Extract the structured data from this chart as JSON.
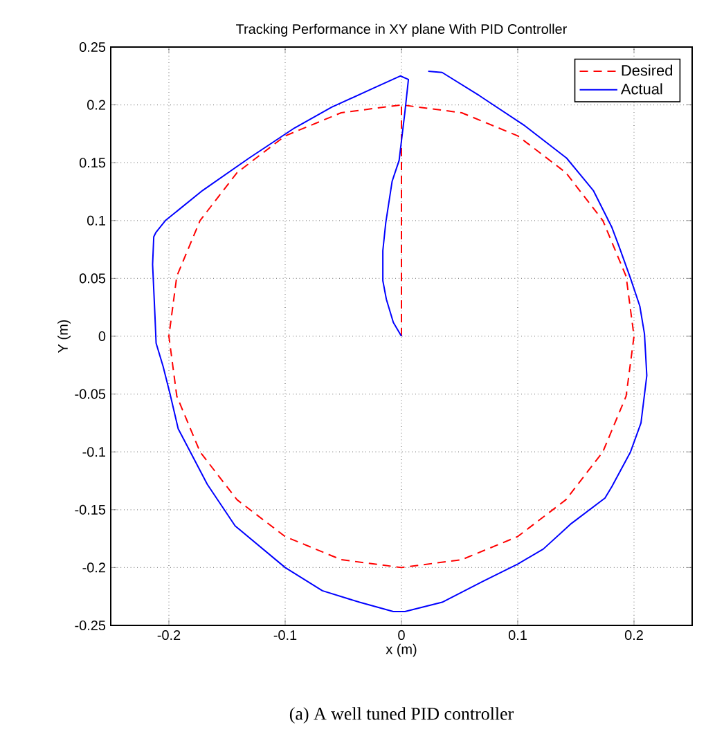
{
  "chart_data": {
    "type": "line",
    "title": "Tracking Performance in XY plane With PID Controller",
    "xlabel": "x (m)",
    "ylabel": "Y (m)",
    "annotations": [
      "(a) A well tuned PID controller"
    ],
    "xlim": [
      -0.25,
      0.25
    ],
    "ylim": [
      -0.25,
      0.25
    ],
    "xticks": [
      -0.2,
      -0.1,
      0,
      0.1,
      0.2
    ],
    "yticks": [
      -0.25,
      -0.2,
      -0.15,
      -0.1,
      -0.05,
      0,
      0.05,
      0.1,
      0.15,
      0.2,
      0.25
    ],
    "grid": true,
    "legend": "top right",
    "series": [
      {
        "name": "Desired",
        "color": "#ff0000",
        "line_style": "dashed",
        "x": [
          0,
          0,
          0.0518,
          0.1,
          0.1414,
          0.1732,
          0.1932,
          0.2,
          0.1932,
          0.1732,
          0.1414,
          0.1,
          0.0518,
          0,
          -0.0518,
          -0.1,
          -0.1414,
          -0.1732,
          -0.1932,
          -0.2,
          -0.1932,
          -0.1732,
          -0.1414,
          -0.1,
          -0.0518,
          0
        ],
        "values": [
          0,
          0.2,
          0.1932,
          0.1732,
          0.1414,
          0.1,
          0.0518,
          0,
          -0.0518,
          -0.1,
          -0.1414,
          -0.1732,
          -0.1932,
          -0.2,
          -0.1932,
          -0.1732,
          -0.1414,
          -0.1,
          -0.0518,
          0,
          0.0518,
          0.1,
          0.1414,
          0.1732,
          0.1932,
          0.2
        ]
      },
      {
        "name": "Actual",
        "color": "#0000ff",
        "line_style": "solid",
        "x": [
          0,
          -0.007,
          -0.013,
          -0.016,
          -0.016,
          -0.0135,
          -0.008,
          -0.002,
          0.003,
          0.006,
          -0.001,
          -0.025,
          -0.06,
          -0.092,
          -0.131,
          -0.171,
          -0.203,
          -0.211,
          -0.213,
          -0.214,
          -0.212,
          -0.211,
          -0.205,
          -0.199,
          -0.192,
          -0.167,
          -0.143,
          -0.1,
          -0.068,
          -0.036,
          -0.007,
          0.003,
          0.035,
          0.07,
          0.1,
          0.122,
          0.146,
          0.175,
          0.181,
          0.197,
          0.206,
          0.211,
          0.209,
          0.205,
          0.197,
          0.187,
          0.181,
          0.165,
          0.142,
          0.106,
          0.067,
          0.035,
          0.023
        ],
        "values": [
          0,
          0.012,
          0.032,
          0.048,
          0.074,
          0.098,
          0.134,
          0.152,
          0.194,
          0.222,
          0.225,
          0.214,
          0.198,
          0.18,
          0.154,
          0.126,
          0.1,
          0.09,
          0.086,
          0.062,
          0.018,
          -0.006,
          -0.026,
          -0.05,
          -0.08,
          -0.128,
          -0.164,
          -0.2,
          -0.22,
          -0.23,
          -0.238,
          -0.238,
          -0.23,
          -0.212,
          -0.197,
          -0.184,
          -0.162,
          -0.14,
          -0.13,
          -0.1,
          -0.075,
          -0.034,
          0.002,
          0.026,
          0.05,
          0.078,
          0.094,
          0.126,
          0.154,
          0.182,
          0.208,
          0.228,
          0.229
        ]
      }
    ]
  }
}
